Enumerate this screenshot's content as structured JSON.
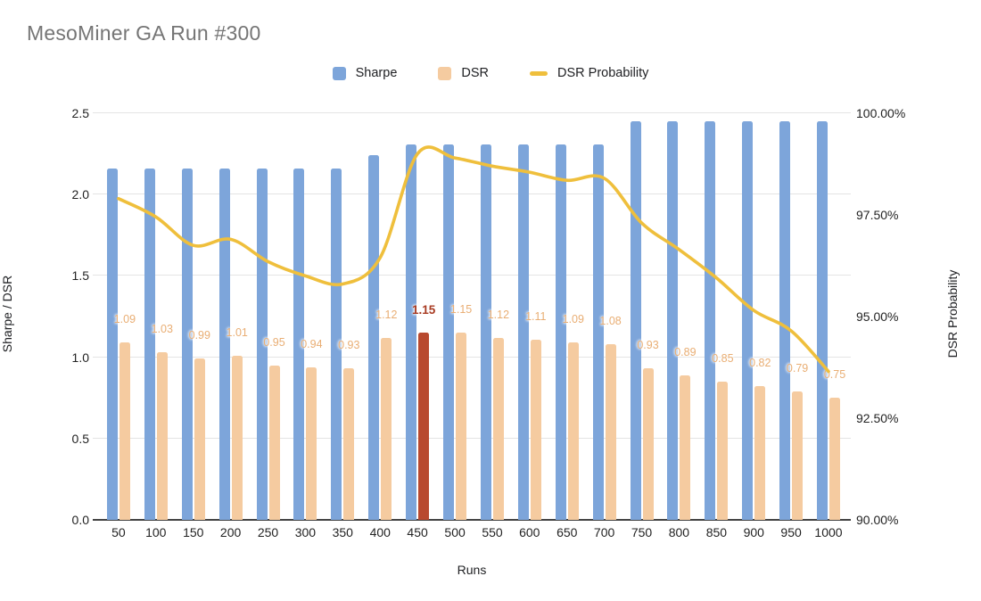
{
  "title": "MesoMiner GA Run #300",
  "legend": [
    {
      "label": "Sharpe",
      "color": "#7da5da",
      "shape": "square"
    },
    {
      "label": "DSR",
      "color": "#f5cba0",
      "shape": "square"
    },
    {
      "label": "DSR Probability",
      "color": "#efbf3c",
      "shape": "dash"
    }
  ],
  "chart_data": {
    "type": "combo (grouped bars + smooth line)",
    "title": "MesoMiner GA Run #300",
    "categories": [
      50,
      100,
      150,
      200,
      250,
      300,
      350,
      400,
      450,
      500,
      550,
      600,
      650,
      700,
      750,
      800,
      850,
      900,
      950,
      1000
    ],
    "series": [
      {
        "name": "Sharpe",
        "type": "bar",
        "axis": "left",
        "color": "#7da5da",
        "values": [
          2.16,
          2.16,
          2.16,
          2.16,
          2.16,
          2.16,
          2.16,
          2.24,
          2.31,
          2.31,
          2.31,
          2.31,
          2.31,
          2.31,
          2.45,
          2.45,
          2.45,
          2.45,
          2.45,
          2.45
        ]
      },
      {
        "name": "DSR",
        "type": "bar",
        "axis": "left",
        "color": "#f5cba0",
        "values": [
          1.09,
          1.03,
          0.99,
          1.01,
          0.95,
          0.94,
          0.93,
          1.12,
          1.15,
          1.15,
          1.12,
          1.11,
          1.09,
          1.08,
          0.93,
          0.89,
          0.85,
          0.82,
          0.79,
          0.75
        ],
        "data_labels": [
          "1.09",
          "1.03",
          "0.99",
          "1.01",
          "0.95",
          "0.94",
          "0.93",
          "1.12",
          "1.15",
          "1.15",
          "1.12",
          "1.11",
          "1.09",
          "1.08",
          "0.93",
          "0.89",
          "0.85",
          "0.82",
          "0.79",
          "0.75"
        ],
        "label_color": "#e9ae74",
        "highlight": {
          "index": 8,
          "category": 450,
          "bar_color": "#b8492f",
          "label_color": "#a83b22"
        }
      },
      {
        "name": "DSR Probability",
        "type": "line",
        "axis": "right",
        "color": "#efbf3c",
        "smooth": true,
        "values_percent": [
          97.9,
          97.45,
          96.75,
          96.9,
          96.35,
          96.0,
          95.8,
          96.45,
          99.0,
          98.9,
          98.7,
          98.55,
          98.35,
          98.4,
          97.3,
          96.65,
          95.95,
          95.15,
          94.65,
          93.65
        ]
      }
    ],
    "left_axis": {
      "title": "Sharpe / DSR",
      "range": [
        0,
        2.5
      ],
      "ticks": [
        "0.0",
        "0.5",
        "1.0",
        "1.5",
        "2.0",
        "2.5"
      ]
    },
    "right_axis": {
      "title": "DSR Probability",
      "range": [
        90,
        100
      ],
      "ticks": [
        "90.00%",
        "92.50%",
        "95.00%",
        "97.50%",
        "100.00%"
      ]
    },
    "x_axis": {
      "title": "Runs"
    },
    "grid": true,
    "legend_position": "top",
    "colors": {
      "gridline": "#e4e4e4",
      "axis_line": "#424242",
      "axis_text": "#232323",
      "title_text": "#757575"
    }
  }
}
